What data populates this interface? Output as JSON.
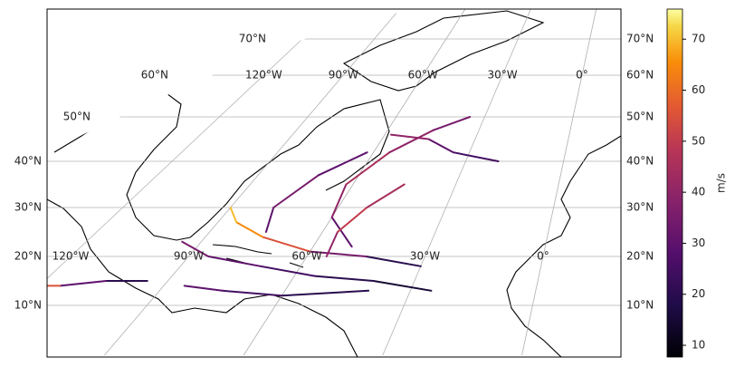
{
  "map": {
    "lat_labels": [
      "10°N",
      "20°N",
      "30°N",
      "40°N",
      "50°N",
      "60°N",
      "70°N"
    ],
    "lats": [
      10,
      20,
      30,
      40,
      50,
      60,
      70
    ],
    "lon_labels": [
      "120°W",
      "90°W",
      "60°W",
      "30°W",
      "0°"
    ],
    "lons": [
      -120,
      -90,
      -60,
      -30,
      0
    ],
    "tracks": [
      [
        [
          -25,
          13,
          15
        ],
        [
          -40,
          15,
          20
        ],
        [
          -55,
          16,
          25
        ],
        [
          -70,
          18,
          30
        ],
        [
          -85,
          20,
          35
        ],
        [
          -95,
          23,
          30
        ]
      ],
      [
        [
          -30,
          18,
          20
        ],
        [
          -45,
          20,
          35
        ],
        [
          -60,
          21,
          55
        ],
        [
          -75,
          24,
          65
        ],
        [
          -85,
          27,
          70
        ],
        [
          -90,
          30,
          40
        ]
      ],
      [
        [
          -50,
          22,
          30
        ],
        [
          -60,
          28,
          40
        ],
        [
          -62,
          35,
          45
        ],
        [
          -55,
          42,
          40
        ],
        [
          -45,
          47,
          35
        ],
        [
          -35,
          50,
          30
        ]
      ],
      [
        [
          -55,
          20,
          40
        ],
        [
          -56,
          25,
          50
        ],
        [
          -52,
          30,
          45
        ],
        [
          -45,
          35,
          40
        ]
      ],
      [
        [
          -95,
          15,
          20
        ],
        [
          -105,
          15,
          30
        ],
        [
          -115,
          14,
          55
        ],
        [
          -125,
          14,
          60
        ]
      ],
      [
        [
          -75,
          25,
          30
        ],
        [
          -78,
          30,
          35
        ],
        [
          -72,
          37,
          30
        ],
        [
          -62,
          42,
          25
        ]
      ],
      [
        [
          -40,
          13,
          20
        ],
        [
          -60,
          12,
          25
        ],
        [
          -75,
          13,
          30
        ],
        [
          -85,
          14,
          20
        ]
      ],
      [
        [
          -20,
          40,
          25
        ],
        [
          -35,
          42,
          30
        ],
        [
          -45,
          45,
          40
        ],
        [
          -58,
          46,
          30
        ]
      ]
    ]
  },
  "colorbar": {
    "label": "m/s",
    "vlim": [
      7.7,
      75.9
    ],
    "ticks": [
      10,
      20,
      30,
      40,
      50,
      60,
      70
    ]
  }
}
